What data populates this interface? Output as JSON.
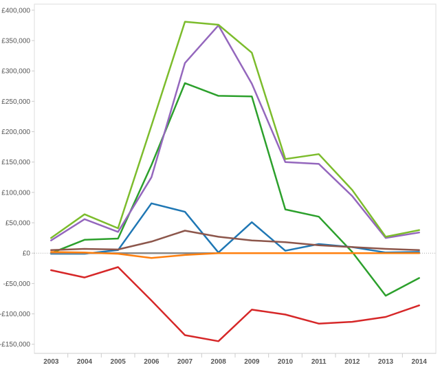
{
  "chart_data": {
    "type": "line",
    "title": "",
    "xlabel": "",
    "ylabel": "",
    "categories": [
      "2003",
      "2004",
      "2005",
      "2006",
      "2007",
      "2008",
      "2009",
      "2010",
      "2011",
      "2012",
      "2013",
      "2014"
    ],
    "ylim": [
      -165000,
      410000
    ],
    "yticks": [
      400000,
      350000,
      300000,
      250000,
      200000,
      150000,
      100000,
      50000,
      0,
      -50000,
      -100000,
      -150000
    ],
    "ytick_labels": [
      "£400,000",
      "£350,000",
      "£300,000",
      "£250,000",
      "£200,000",
      "£150,000",
      "£100,000",
      "£50,000",
      "£0",
      "-£50,000",
      "-£100,000",
      "-£150,000"
    ],
    "grid": false,
    "zero_line": true,
    "series": [
      {
        "color": "#2ca02c",
        "values": [
          0,
          22000,
          24000,
          145000,
          280000,
          259000,
          258000,
          72000,
          60000,
          2000,
          -70000,
          -41000
        ]
      },
      {
        "color": "#1f77b4",
        "values": [
          -1000,
          -1000,
          5000,
          82000,
          68000,
          1000,
          51000,
          4000,
          15000,
          10000,
          1000,
          2000
        ]
      },
      {
        "color": "#8c564b",
        "values": [
          5000,
          7000,
          6000,
          19000,
          37000,
          27000,
          21000,
          18000,
          13000,
          10000,
          7000,
          5000
        ]
      },
      {
        "color": "#888888",
        "values": [
          0,
          0,
          0,
          0,
          0,
          0,
          0,
          0,
          0,
          0,
          0,
          0
        ]
      },
      {
        "color": "#ff7f0e",
        "values": [
          2000,
          1000,
          -1000,
          -8000,
          -3000,
          0,
          0,
          0,
          0,
          0,
          0,
          0
        ]
      },
      {
        "color": "#d62728",
        "values": [
          -28000,
          -40000,
          -23000,
          -78000,
          -135000,
          -145000,
          -93000,
          -101000,
          -116000,
          -113000,
          -105000,
          -86000
        ]
      },
      {
        "color": "#9467bd",
        "values": [
          21000,
          56000,
          35000,
          125000,
          313000,
          375000,
          279000,
          150000,
          147000,
          94000,
          25000,
          34000
        ]
      },
      {
        "color": "#7cbc2c",
        "values": [
          25000,
          64000,
          41000,
          210000,
          381000,
          376000,
          330000,
          155000,
          163000,
          104000,
          27000,
          38000
        ]
      }
    ]
  }
}
